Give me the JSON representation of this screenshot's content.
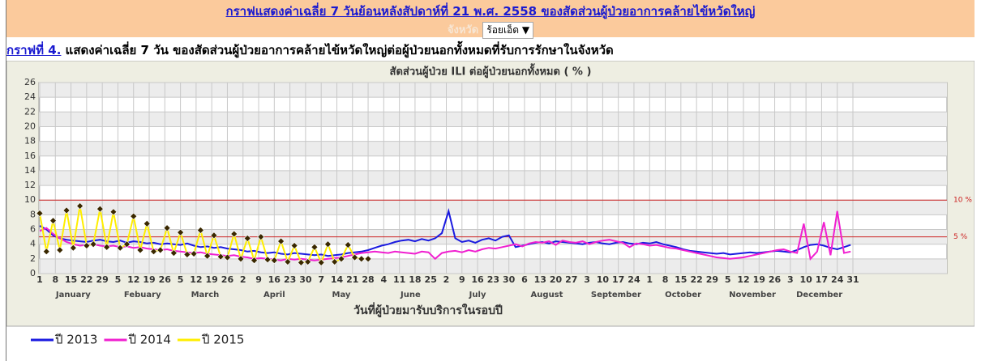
{
  "header": {
    "title": "กราฟแสดงค่าเฉลี่ย 7 วันย้อนหลังสัปดาห์ที่ 21   พ.ศ. 2558 ของสัดส่วนผู้ป่วยอาการคล้ายไข้หวัดใหญ่",
    "province_label": "จังหวัด",
    "province": "ร้อยเอ็ด"
  },
  "caption": {
    "link": "กราฟที่ 4.",
    "text": " แสดงค่าเฉลี่ย 7 วัน ของสัดส่วนผู้ป่วยอาการคล้ายไข้หวัดใหญ่ต่อผู้ป่วยนอกทั้งหมดที่รับการรักษาในจังหวัด"
  },
  "chart_data": {
    "type": "line",
    "title": "สัดส่วนผู้ป่วย ILI ต่อผู้ป่วยนอกทั้งหมด ( % )",
    "x_label": "วันที่ผู้ป่วยมารับบริการในรอบปี",
    "months": [
      "January",
      "Febuary",
      "March",
      "April",
      "May",
      "June",
      "July",
      "August",
      "September",
      "October",
      "November",
      "December"
    ],
    "x": [
      1,
      4,
      7,
      10,
      13,
      16,
      19,
      22,
      25,
      28,
      31,
      34,
      37,
      40,
      43,
      46,
      49,
      52,
      55,
      58,
      61,
      64,
      67,
      70,
      73,
      76,
      79,
      82,
      85,
      88,
      91,
      94,
      97,
      100,
      103,
      106,
      109,
      112,
      115,
      118,
      121,
      124,
      127,
      130,
      133,
      136,
      139,
      142,
      145,
      148,
      151,
      154,
      157,
      160,
      163,
      166,
      169,
      172,
      175,
      178,
      181,
      184,
      187,
      190,
      193,
      196,
      199,
      202,
      205,
      208,
      211,
      214,
      217,
      220,
      223,
      226,
      229,
      232,
      235,
      238,
      241,
      244,
      247,
      250,
      253,
      256,
      259,
      262,
      265,
      268,
      271,
      274,
      277,
      280,
      283,
      286,
      289,
      292,
      295,
      298,
      301,
      304,
      307,
      310,
      313,
      316,
      319,
      322,
      325,
      328,
      331,
      334,
      337,
      340,
      343,
      346,
      349,
      352,
      355,
      358,
      361,
      364
    ],
    "xlim": [
      1,
      365
    ],
    "xticks": [
      1,
      8,
      15,
      22,
      29,
      {
        "value": 36,
        "label": "5"
      },
      {
        "value": 43,
        "label": "12"
      },
      {
        "value": 50,
        "label": "19"
      },
      {
        "value": 57,
        "label": "26"
      },
      {
        "value": 64,
        "label": "5"
      },
      {
        "value": 71,
        "label": "12"
      },
      {
        "value": 78,
        "label": "19"
      },
      {
        "value": 85,
        "label": "26"
      },
      {
        "value": 92,
        "label": "2"
      },
      {
        "value": 99,
        "label": "9"
      },
      {
        "value": 106,
        "label": "16"
      },
      {
        "value": 113,
        "label": "23"
      },
      {
        "value": 120,
        "label": "30"
      },
      {
        "value": 127,
        "label": "7"
      },
      {
        "value": 134,
        "label": "14"
      },
      {
        "value": 141,
        "label": "21"
      },
      {
        "value": 148,
        "label": "28"
      },
      {
        "value": 155,
        "label": "4"
      },
      {
        "value": 162,
        "label": "11"
      },
      {
        "value": 169,
        "label": "18"
      },
      {
        "value": 176,
        "label": "25"
      },
      {
        "value": 183,
        "label": "2"
      },
      {
        "value": 190,
        "label": "9"
      },
      {
        "value": 197,
        "label": "16"
      },
      {
        "value": 204,
        "label": "23"
      },
      {
        "value": 211,
        "label": "30"
      },
      {
        "value": 218,
        "label": "6"
      },
      {
        "value": 225,
        "label": "13"
      },
      {
        "value": 232,
        "label": "20"
      },
      {
        "value": 239,
        "label": "27"
      },
      {
        "value": 246,
        "label": "3"
      },
      {
        "value": 253,
        "label": "10"
      },
      {
        "value": 260,
        "label": "17"
      },
      {
        "value": 267,
        "label": "24"
      },
      {
        "value": 274,
        "label": "1"
      },
      {
        "value": 281,
        "label": "8"
      },
      {
        "value": 288,
        "label": "15"
      },
      {
        "value": 295,
        "label": "22"
      },
      {
        "value": 302,
        "label": "29"
      },
      {
        "value": 309,
        "label": "5"
      },
      {
        "value": 316,
        "label": "12"
      },
      {
        "value": 323,
        "label": "19"
      },
      {
        "value": 330,
        "label": "26"
      },
      {
        "value": 337,
        "label": "3"
      },
      {
        "value": 344,
        "label": "10"
      },
      {
        "value": 351,
        "label": "17"
      },
      {
        "value": 358,
        "label": "24"
      },
      {
        "value": 365,
        "label": "31"
      }
    ],
    "ylim": [
      0,
      26
    ],
    "yticks": [
      0,
      2,
      4,
      6,
      8,
      10,
      12,
      14,
      16,
      18,
      20,
      22,
      24,
      26
    ],
    "grid": true,
    "reference_lines": [
      {
        "value": 10,
        "label": "10 %",
        "color": "#cc2222"
      },
      {
        "value": 5,
        "label": "5 %",
        "color": "#cc2222"
      }
    ],
    "legend": "bottom-left",
    "series": [
      {
        "name": "ปี 2013",
        "color": "#1a1ae0",
        "values": [
          6.5,
          6,
          5.2,
          4.8,
          4.6,
          4.5,
          4.4,
          4.3,
          4.5,
          4.6,
          4.4,
          4.3,
          4.5,
          4.2,
          4.4,
          4.3,
          4.1,
          4.2,
          4.0,
          4.1,
          4.0,
          3.9,
          4.1,
          3.8,
          3.6,
          3.7,
          3.5,
          3.6,
          3.4,
          3.3,
          3.2,
          3.0,
          3.1,
          2.9,
          2.8,
          2.9,
          2.7,
          2.6,
          2.8,
          2.7,
          2.6,
          2.5,
          2.6,
          2.4,
          2.5,
          2.6,
          2.8,
          2.9,
          3.0,
          3.2,
          3.5,
          3.8,
          4.0,
          4.3,
          4.5,
          4.6,
          4.4,
          4.7,
          4.5,
          4.8,
          5.5,
          8.5,
          4.8,
          4.3,
          4.5,
          4.2,
          4.6,
          4.8,
          4.5,
          5.0,
          5.2,
          3.6,
          3.8,
          4.0,
          4.2,
          4.3,
          4.1,
          4.4,
          4.3,
          4.2,
          4.1,
          4.0,
          4.2,
          4.3,
          4.1,
          4.0,
          4.2,
          4.3,
          4.1,
          4.0,
          4.2,
          4.1,
          4.3,
          4.0,
          3.8,
          3.6,
          3.3,
          3.1,
          3.0,
          2.9,
          2.8,
          2.7,
          2.8,
          2.6,
          2.7,
          2.8,
          2.9,
          2.8,
          2.9,
          3.0,
          3.1,
          3.0,
          2.9,
          3.2,
          3.6,
          3.9,
          4.0,
          3.8,
          3.5,
          3.3,
          3.6,
          3.9
        ]
      },
      {
        "name": "ปี 2014",
        "color": "#f020d0",
        "values": [
          5.8,
          6.2,
          5.4,
          4.8,
          4.3,
          4.0,
          3.8,
          3.9,
          4.0,
          3.8,
          3.7,
          3.8,
          3.6,
          3.7,
          3.5,
          3.6,
          3.4,
          3.3,
          3.2,
          3.3,
          3.1,
          3.0,
          2.9,
          2.8,
          2.9,
          2.7,
          2.6,
          2.5,
          2.4,
          2.5,
          2.3,
          2.2,
          2.0,
          2.1,
          2.0,
          1.9,
          1.8,
          2.0,
          1.9,
          2.0,
          1.9,
          1.8,
          1.9,
          2.0,
          2.1,
          2.2,
          2.4,
          2.6,
          2.8,
          2.9,
          3.0,
          2.9,
          2.8,
          3.0,
          2.9,
          2.8,
          2.7,
          3.0,
          2.9,
          2.0,
          2.8,
          3.0,
          3.1,
          2.9,
          3.2,
          3.0,
          3.3,
          3.5,
          3.4,
          3.6,
          3.8,
          4.0,
          3.7,
          4.1,
          4.3,
          4.2,
          4.4,
          3.9,
          4.5,
          4.3,
          4.2,
          4.4,
          4.0,
          4.3,
          4.5,
          4.6,
          4.4,
          4.2,
          3.6,
          4.1,
          4.0,
          3.8,
          3.9,
          3.7,
          3.5,
          3.4,
          3.2,
          3.0,
          2.8,
          2.6,
          2.4,
          2.2,
          2.1,
          2.0,
          2.1,
          2.2,
          2.4,
          2.6,
          2.8,
          3.0,
          3.2,
          3.3,
          3.0,
          2.8,
          6.8,
          2.0,
          3.0,
          7.0,
          2.5,
          8.5,
          2.8,
          3.0
        ]
      },
      {
        "name": "ปี 2015",
        "color": "#ffee00",
        "marker": "diamond",
        "marker_color": "#3a2800",
        "values": [
          8.2,
          3.0,
          7.2,
          3.2,
          8.6,
          3.5,
          9.2,
          3.8,
          4.0,
          8.8,
          3.6,
          8.4,
          3.5,
          4.0,
          7.8,
          3.2,
          6.8,
          3.0,
          3.2,
          6.2,
          2.8,
          5.6,
          2.6,
          2.7,
          5.9,
          2.4,
          5.2,
          2.3,
          2.2,
          5.4,
          2.0,
          4.8,
          1.8,
          5.0,
          1.9,
          1.8,
          4.4,
          1.6,
          3.8,
          1.5,
          1.6,
          3.6,
          1.5,
          4.0,
          1.6,
          2.0,
          3.9,
          2.2,
          2.0,
          2.0,
          null,
          null,
          null,
          null,
          null,
          null,
          null,
          null,
          null,
          null,
          null,
          null,
          null,
          null,
          null,
          null,
          null,
          null,
          null,
          null,
          null,
          null,
          null,
          null,
          null,
          null,
          null,
          null,
          null,
          null,
          null,
          null,
          null,
          null,
          null,
          null,
          null,
          null,
          null,
          null,
          null,
          null,
          null,
          null,
          null,
          null,
          null,
          null,
          null,
          null,
          null,
          null,
          null,
          null,
          null,
          null,
          null,
          null,
          null,
          null,
          null,
          null,
          null,
          null,
          null,
          null,
          null,
          null,
          null,
          null,
          null,
          null
        ]
      }
    ]
  }
}
